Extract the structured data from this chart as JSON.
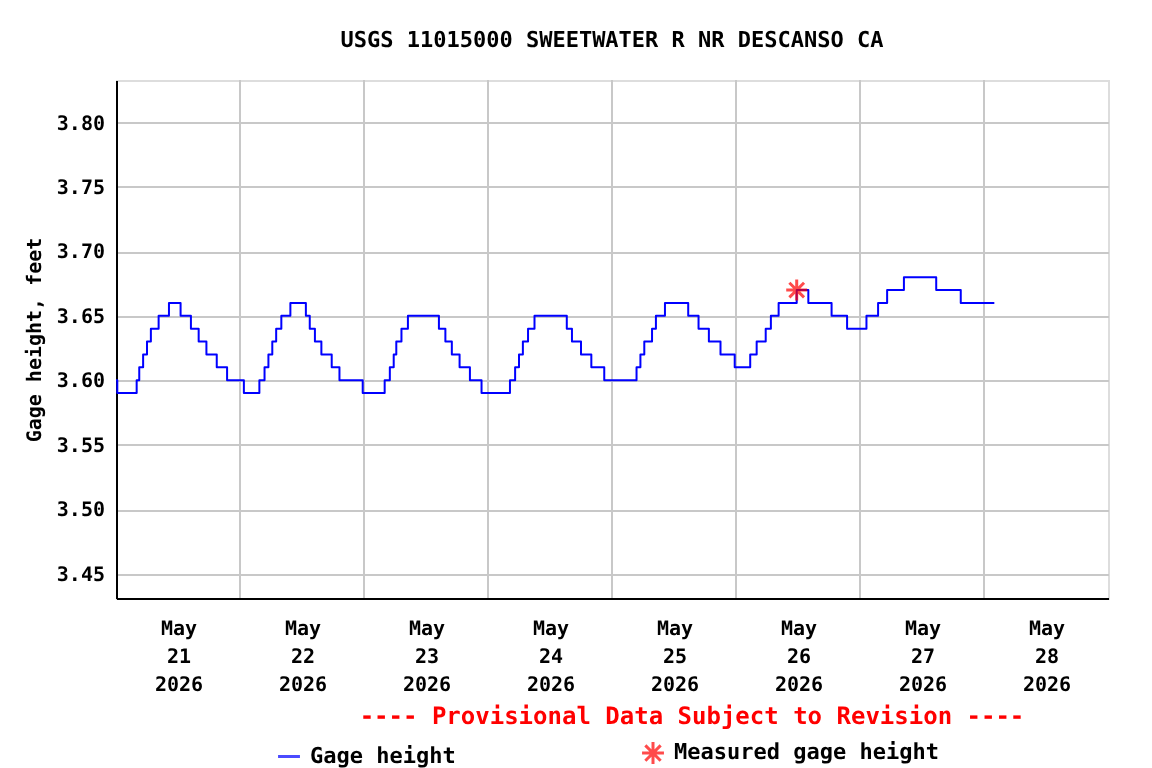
{
  "chart_data": {
    "type": "line",
    "title": "USGS 11015000 SWEETWATER R NR DESCANSO CA",
    "ylabel": "Gage height, feet",
    "annotations": [
      "---- Provisional Data Subject to Revision ----"
    ],
    "xlim": [
      "2026-05-21T00:00",
      "2026-05-29T00:00"
    ],
    "xticks": [
      {
        "value": "2026-05-21T12:00",
        "label": "May\n21\n2026"
      },
      {
        "value": "2026-05-22T00:00",
        "label": null
      },
      {
        "value": "2026-05-22T12:00",
        "label": "May\n22\n2026"
      },
      {
        "value": "2026-05-23T00:00",
        "label": null
      },
      {
        "value": "2026-05-23T12:00",
        "label": "May\n23\n2026"
      },
      {
        "value": "2026-05-24T00:00",
        "label": null
      },
      {
        "value": "2026-05-24T12:00",
        "label": "May\n24\n2026"
      },
      {
        "value": "2026-05-25T00:00",
        "label": null
      },
      {
        "value": "2026-05-25T12:00",
        "label": "May\n25\n2026"
      },
      {
        "value": "2026-05-26T00:00",
        "label": null
      },
      {
        "value": "2026-05-26T12:00",
        "label": "May\n26\n2026"
      },
      {
        "value": "2026-05-27T00:00",
        "label": null
      },
      {
        "value": "2026-05-27T12:00",
        "label": "May\n27\n2026"
      },
      {
        "value": "2026-05-28T00:00",
        "label": null
      },
      {
        "value": "2026-05-28T12:00",
        "label": "May\n28\n2026"
      }
    ],
    "ylim": [
      3.431,
      3.833
    ],
    "yticks": [
      {
        "value": 3.45,
        "label": "3.45"
      },
      {
        "value": 3.5,
        "label": "3.50"
      },
      {
        "value": 3.55,
        "label": "3.55"
      },
      {
        "value": 3.6,
        "label": "3.60"
      },
      {
        "value": 3.65,
        "label": "3.65"
      },
      {
        "value": 3.7,
        "label": "3.70"
      },
      {
        "value": 3.75,
        "label": "3.75"
      },
      {
        "value": 3.8,
        "label": "3.80"
      }
    ],
    "grid": true,
    "legend": "bottom",
    "series": [
      {
        "name": "Gage height",
        "type": "step",
        "color": "#0000ff",
        "marker": "none",
        "x": [
          "2026-05-21T00:00",
          "2026-05-21T00:15",
          "2026-05-21T04:00",
          "2026-05-21T04:30",
          "2026-05-21T05:15",
          "2026-05-21T06:00",
          "2026-05-21T06:45",
          "2026-05-21T08:15",
          "2026-05-21T10:15",
          "2026-05-21T12:30",
          "2026-05-21T14:30",
          "2026-05-21T16:00",
          "2026-05-21T17:30",
          "2026-05-21T19:30",
          "2026-05-21T21:30",
          "2026-05-22T00:45",
          "2026-05-22T03:45",
          "2026-05-22T04:45",
          "2026-05-22T05:30",
          "2026-05-22T06:15",
          "2026-05-22T07:00",
          "2026-05-22T08:00",
          "2026-05-22T09:45",
          "2026-05-22T12:45",
          "2026-05-22T13:30",
          "2026-05-22T14:30",
          "2026-05-22T15:45",
          "2026-05-22T17:45",
          "2026-05-22T19:15",
          "2026-05-22T23:45",
          "2026-05-23T04:00",
          "2026-05-23T05:00",
          "2026-05-23T05:45",
          "2026-05-23T06:15",
          "2026-05-23T07:15",
          "2026-05-23T08:30",
          "2026-05-23T14:30",
          "2026-05-23T15:45",
          "2026-05-23T17:00",
          "2026-05-23T18:30",
          "2026-05-23T20:30",
          "2026-05-23T22:45",
          "2026-05-24T04:15",
          "2026-05-24T05:15",
          "2026-05-24T06:00",
          "2026-05-24T06:45",
          "2026-05-24T07:45",
          "2026-05-24T09:00",
          "2026-05-24T15:15",
          "2026-05-24T16:15",
          "2026-05-24T18:00",
          "2026-05-24T20:00",
          "2026-05-24T22:30",
          "2026-05-25T04:45",
          "2026-05-25T05:30",
          "2026-05-25T06:15",
          "2026-05-25T07:45",
          "2026-05-25T08:30",
          "2026-05-25T10:15",
          "2026-05-25T14:45",
          "2026-05-25T16:45",
          "2026-05-25T18:45",
          "2026-05-25T21:00",
          "2026-05-25T23:45",
          "2026-05-26T02:45",
          "2026-05-26T04:00",
          "2026-05-26T05:45",
          "2026-05-26T06:45",
          "2026-05-26T08:15",
          "2026-05-26T11:45",
          "2026-05-26T14:00",
          "2026-05-26T18:30",
          "2026-05-26T21:30",
          "2026-05-27T01:15",
          "2026-05-27T03:30",
          "2026-05-27T05:15",
          "2026-05-27T08:30",
          "2026-05-27T14:45",
          "2026-05-27T19:30",
          "2026-05-28T02:00"
        ],
        "values": [
          3.6,
          3.59,
          3.6,
          3.61,
          3.62,
          3.63,
          3.64,
          3.65,
          3.66,
          3.65,
          3.64,
          3.63,
          3.62,
          3.61,
          3.6,
          3.59,
          3.6,
          3.61,
          3.62,
          3.63,
          3.64,
          3.65,
          3.66,
          3.65,
          3.64,
          3.63,
          3.62,
          3.61,
          3.6,
          3.59,
          3.6,
          3.61,
          3.62,
          3.63,
          3.64,
          3.65,
          3.64,
          3.63,
          3.62,
          3.61,
          3.6,
          3.59,
          3.6,
          3.61,
          3.62,
          3.63,
          3.64,
          3.65,
          3.64,
          3.63,
          3.62,
          3.61,
          3.6,
          3.61,
          3.62,
          3.63,
          3.64,
          3.65,
          3.66,
          3.65,
          3.64,
          3.63,
          3.62,
          3.61,
          3.62,
          3.63,
          3.64,
          3.65,
          3.66,
          3.67,
          3.66,
          3.65,
          3.64,
          3.65,
          3.66,
          3.67,
          3.68,
          3.67,
          3.66,
          3.66
        ]
      },
      {
        "name": "Measured gage height",
        "type": "scatter",
        "color": "#ff0000",
        "marker": "cross",
        "x": [
          "2026-05-26T11:45"
        ],
        "values": [
          3.67
        ]
      }
    ]
  }
}
